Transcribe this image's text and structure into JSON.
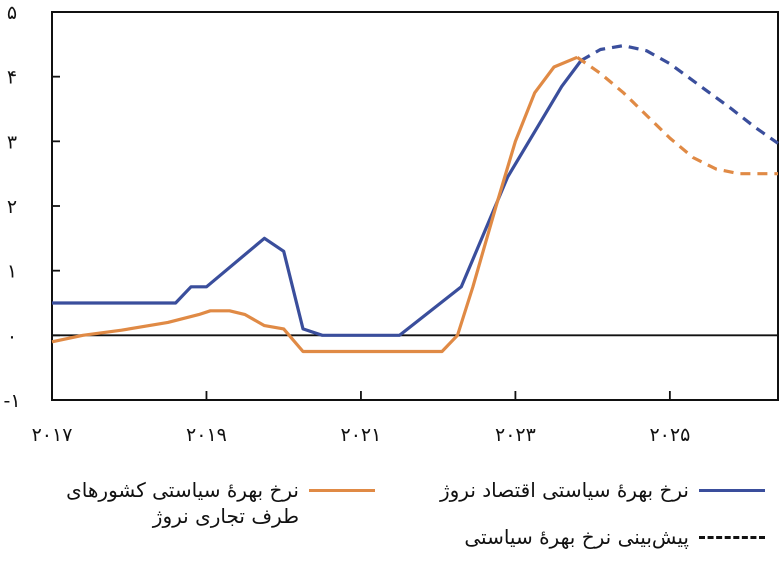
{
  "chart_data": {
    "type": "line",
    "xlim": [
      2017,
      2026.4
    ],
    "ylim": [
      -1,
      5
    ],
    "x_ticks": [
      2017,
      2019,
      2021,
      2023,
      2025
    ],
    "x_tick_labels": [
      "۲۰۱۷",
      "۲۰۱۹",
      "۲۰۲۱",
      "۲۰۲۳",
      "۲۰۲۵"
    ],
    "y_ticks": [
      -1,
      0,
      1,
      2,
      3,
      4,
      5
    ],
    "y_tick_labels": [
      "-۱",
      "۰",
      "۱",
      "۲",
      "۳",
      "۴",
      "۵"
    ],
    "zero_line": true,
    "series": [
      {
        "name": "نرخ بهرهٔ سیاستی اقتصاد نروژ",
        "color": "#3a4e9c",
        "x": [
          2017.0,
          2018.6,
          2018.8,
          2019.0,
          2019.75,
          2020.0,
          2020.25,
          2020.5,
          2021.5,
          2022.3,
          2022.6,
          2022.9,
          2023.3,
          2023.6,
          2023.85
        ],
        "y": [
          0.5,
          0.5,
          0.75,
          0.75,
          1.5,
          1.3,
          0.1,
          0.0,
          0.0,
          0.75,
          1.6,
          2.45,
          3.25,
          3.85,
          4.25
        ]
      },
      {
        "name": "نرخ بهرهٔ سیاستی کشورهای طرف تجاری نروژ",
        "color": "#e08a45",
        "x": [
          2017.0,
          2017.4,
          2017.9,
          2018.5,
          2018.9,
          2019.05,
          2019.3,
          2019.5,
          2019.75,
          2020.0,
          2020.25,
          2022.05,
          2022.25,
          2022.45,
          2022.75,
          2023.0,
          2023.25,
          2023.5,
          2023.8
        ],
        "y": [
          -0.1,
          0.0,
          0.08,
          0.2,
          0.32,
          0.38,
          0.38,
          0.32,
          0.15,
          0.1,
          -0.25,
          -0.25,
          0.0,
          0.75,
          2.0,
          3.0,
          3.75,
          4.15,
          4.3
        ]
      },
      {
        "name": "پیش‌بینی نرخ بهرهٔ سیاستی",
        "color": "#3a4e9c",
        "dashed": true,
        "x": [
          2023.85,
          2024.1,
          2024.4,
          2024.7,
          2025.0,
          2025.4,
          2025.8,
          2026.1,
          2026.4
        ],
        "y": [
          4.25,
          4.42,
          4.48,
          4.4,
          4.2,
          3.85,
          3.5,
          3.22,
          2.97
        ]
      },
      {
        "name": "پیش‌بینی نرخ بهرهٔ سیاستی",
        "color": "#e08a45",
        "dashed": true,
        "x": [
          2023.8,
          2024.1,
          2024.4,
          2024.7,
          2025.0,
          2025.3,
          2025.6,
          2025.9,
          2026.2,
          2026.4
        ],
        "y": [
          4.3,
          4.05,
          3.75,
          3.4,
          3.05,
          2.75,
          2.57,
          2.5,
          2.5,
          2.5
        ]
      }
    ]
  },
  "legend": {
    "norway": "نرخ بهرهٔ سیاستی اقتصاد نروژ",
    "forecast": "پیش‌بینی نرخ بهرهٔ سیاستی",
    "trading_partners_line1": "نرخ بهرهٔ سیاستی کشورهای",
    "trading_partners_line2": "طرف تجاری نروژ"
  }
}
